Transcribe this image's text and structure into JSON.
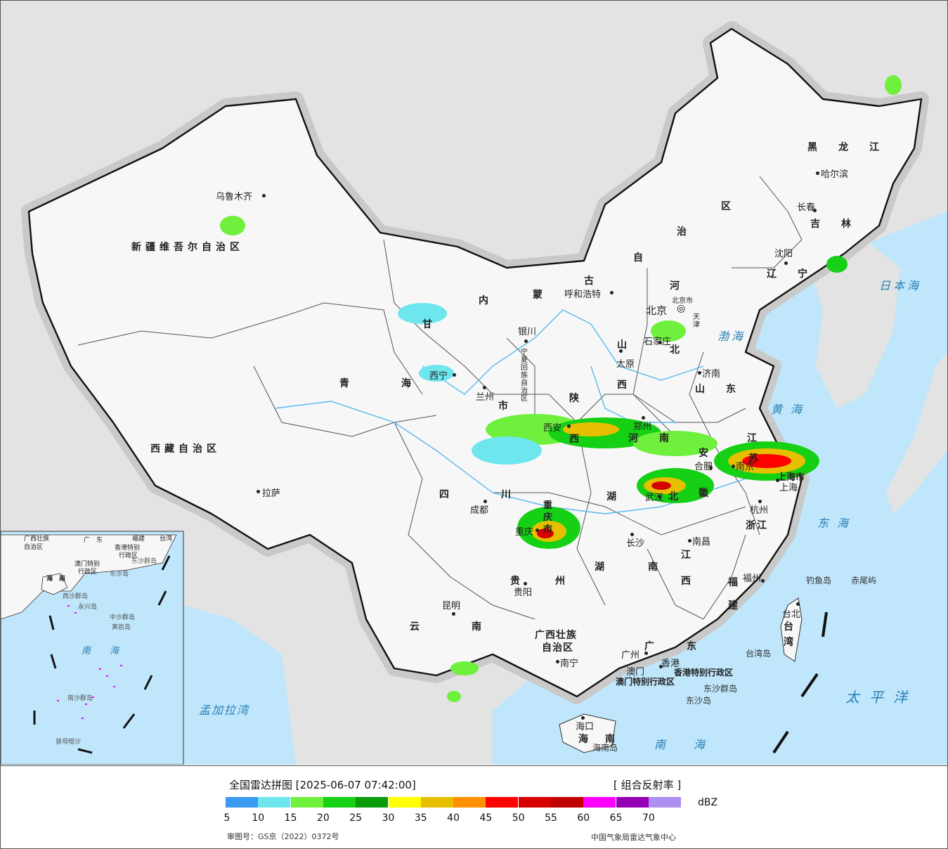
{
  "map": {
    "provinces": [
      {
        "id": "xinjiang",
        "text": "新疆维吾尔自治区"
      },
      {
        "id": "xizang",
        "text": "西藏自治区"
      },
      {
        "id": "qinghai",
        "text": "青　海"
      },
      {
        "id": "gansu",
        "text": "甘"
      },
      {
        "id": "neimenggu_1",
        "text": "内"
      },
      {
        "id": "neimenggu_2",
        "text": "蒙"
      },
      {
        "id": "neimenggu_3",
        "text": "古"
      },
      {
        "id": "neimenggu_4",
        "text": "自"
      },
      {
        "id": "neimenggu_5",
        "text": "治"
      },
      {
        "id": "neimenggu_6",
        "text": "区"
      },
      {
        "id": "heilongjiang",
        "text": "黑　龙　江"
      },
      {
        "id": "jilin",
        "text": "吉　林"
      },
      {
        "id": "liaoning",
        "text": "辽　宁"
      },
      {
        "id": "hebei_1",
        "text": "河"
      },
      {
        "id": "hebei_2",
        "text": "北"
      },
      {
        "id": "shandong",
        "text": "山　东"
      },
      {
        "id": "shanxi_1",
        "text": "山"
      },
      {
        "id": "shanxi_2",
        "text": "西"
      },
      {
        "id": "shaanxi_1",
        "text": "陕"
      },
      {
        "id": "shaanxi_2",
        "text": "西"
      },
      {
        "id": "henan",
        "text": "河　南"
      },
      {
        "id": "jiangsu_1",
        "text": "江"
      },
      {
        "id": "jiangsu_2",
        "text": "苏"
      },
      {
        "id": "anhui_1",
        "text": "安"
      },
      {
        "id": "anhui_2",
        "text": "徽"
      },
      {
        "id": "hubei",
        "text": "湖　北"
      },
      {
        "id": "sichuan",
        "text": "四　川"
      },
      {
        "id": "chongqing",
        "text": "重庆市"
      },
      {
        "id": "hunan",
        "text": "湖　南"
      },
      {
        "id": "jiangxi_1",
        "text": "江"
      },
      {
        "id": "jiangxi_2",
        "text": "西"
      },
      {
        "id": "zhejiang",
        "text": "浙江"
      },
      {
        "id": "fujian_1",
        "text": "福"
      },
      {
        "id": "fujian_2",
        "text": "建"
      },
      {
        "id": "guizhou",
        "text": "贵　州"
      },
      {
        "id": "yunnan",
        "text": "云　南"
      },
      {
        "id": "guangxi_1",
        "text": "广西壮族"
      },
      {
        "id": "guangxi_2",
        "text": "自治区"
      },
      {
        "id": "guangdong",
        "text": "广　东"
      },
      {
        "id": "hainan_1",
        "text": "海"
      },
      {
        "id": "hainan_2",
        "text": "南"
      },
      {
        "id": "taiwan_1",
        "text": "台"
      },
      {
        "id": "taiwan_2",
        "text": "湾"
      },
      {
        "id": "ningxia",
        "text": "宁夏回族自治区"
      },
      {
        "id": "shanghai",
        "text": "上海市"
      },
      {
        "id": "tianjin",
        "text": "天津"
      },
      {
        "id": "beijing_shi",
        "text": "北京市"
      },
      {
        "id": "hk_sar",
        "text": "香港特别行政区"
      },
      {
        "id": "macao_sar",
        "text": "澳门特别行政区"
      },
      {
        "id": "lanzhou_shi",
        "text": "市"
      }
    ],
    "cities": [
      {
        "id": "urumqi",
        "text": "乌鲁木齐"
      },
      {
        "id": "lhasa",
        "text": "拉萨"
      },
      {
        "id": "xining",
        "text": "西宁"
      },
      {
        "id": "lanzhou",
        "text": "兰州"
      },
      {
        "id": "yinchuan",
        "text": "银川"
      },
      {
        "id": "hohhot",
        "text": "呼和浩特"
      },
      {
        "id": "beijing",
        "text": "北京"
      },
      {
        "id": "shijiazhuang",
        "text": "石家庄"
      },
      {
        "id": "taiyuan",
        "text": "太原"
      },
      {
        "id": "jinan",
        "text": "济南"
      },
      {
        "id": "zhengzhou",
        "text": "郑州"
      },
      {
        "id": "xian",
        "text": "西安"
      },
      {
        "id": "hefei",
        "text": "合肥"
      },
      {
        "id": "nanjing",
        "text": "南京"
      },
      {
        "id": "shanghai_c",
        "text": "上海"
      },
      {
        "id": "hangzhou",
        "text": "杭州"
      },
      {
        "id": "wuhan",
        "text": "武汉"
      },
      {
        "id": "chengdu",
        "text": "成都"
      },
      {
        "id": "chongqing_c",
        "text": "重庆"
      },
      {
        "id": "changsha",
        "text": "长沙"
      },
      {
        "id": "nanchang",
        "text": "南昌"
      },
      {
        "id": "fuzhou",
        "text": "福州"
      },
      {
        "id": "taibei",
        "text": "台北"
      },
      {
        "id": "guiyang",
        "text": "贵阳"
      },
      {
        "id": "kunming",
        "text": "昆明"
      },
      {
        "id": "nanning",
        "text": "南宁"
      },
      {
        "id": "guangzhou",
        "text": "广州"
      },
      {
        "id": "xianggang",
        "text": "香港"
      },
      {
        "id": "aomen",
        "text": "澳门"
      },
      {
        "id": "haikou",
        "text": "海口"
      },
      {
        "id": "harbin",
        "text": "哈尔滨"
      },
      {
        "id": "changchun",
        "text": "长春"
      },
      {
        "id": "shenyang",
        "text": "沈阳"
      }
    ],
    "seas": [
      {
        "id": "riben",
        "text": "日本海"
      },
      {
        "id": "bohai",
        "text": "渤海"
      },
      {
        "id": "huanghai",
        "text": "黄海"
      },
      {
        "id": "donghai",
        "text": "东海"
      },
      {
        "id": "taipingyang",
        "text": "太平洋"
      },
      {
        "id": "nanhai",
        "text": "南海"
      },
      {
        "id": "mengjiala",
        "text": "孟加拉湾"
      }
    ],
    "islands": [
      {
        "id": "diaoyu",
        "text": "钓鱼岛"
      },
      {
        "id": "chiwei",
        "text": "赤尾屿"
      },
      {
        "id": "taiwan_dao",
        "text": "台湾岛"
      },
      {
        "id": "dongsha_qd",
        "text": "东沙群岛"
      },
      {
        "id": "dongsha_d",
        "text": "东沙岛"
      },
      {
        "id": "hainan_dao",
        "text": "海南岛"
      }
    ],
    "inset": {
      "labels": [
        {
          "id": "i_guangxi",
          "text": "广西壮族"
        },
        {
          "id": "i_zzq",
          "text": "自治区"
        },
        {
          "id": "i_guang",
          "text": "广　东"
        },
        {
          "id": "i_fujian",
          "text": "福建"
        },
        {
          "id": "i_taiwan",
          "text": "台湾"
        },
        {
          "id": "i_hk",
          "text": "香港特别"
        },
        {
          "id": "i_hk2",
          "text": "行政区"
        },
        {
          "id": "i_mo",
          "text": "澳门特别"
        },
        {
          "id": "i_mo2",
          "text": "行政区"
        },
        {
          "id": "i_dongsha",
          "text": "东沙群岛"
        },
        {
          "id": "i_dongsha2",
          "text": "东沙岛"
        },
        {
          "id": "i_hainan",
          "text": "海　南"
        },
        {
          "id": "i_xisha",
          "text": "西沙群岛"
        },
        {
          "id": "i_zhongsha",
          "text": "中沙群岛"
        },
        {
          "id": "i_huangyan",
          "text": "黄岩岛"
        },
        {
          "id": "i_yongxing",
          "text": "永兴岛"
        },
        {
          "id": "i_nansha",
          "text": "南沙群岛"
        },
        {
          "id": "i_zengmu",
          "text": "曾母暗沙"
        },
        {
          "id": "i_nan",
          "text": "南"
        },
        {
          "id": "i_hai",
          "text": "海"
        }
      ]
    }
  },
  "legend": {
    "title": "全国雷达拼图 [2025-06-07 07:42:00]",
    "product": "[ 组合反射率 ]",
    "unit": "dBZ",
    "ticks": [
      "5",
      "10",
      "15",
      "20",
      "25",
      "30",
      "35",
      "40",
      "45",
      "50",
      "55",
      "60",
      "65",
      "70"
    ],
    "colors": [
      "#3a9bf0",
      "#6ee6ee",
      "#6ef03c",
      "#16d016",
      "#0b9c0b",
      "#ffff00",
      "#e6c000",
      "#ff9000",
      "#ff0000",
      "#d60000",
      "#c00000",
      "#ff00ff",
      "#9600b4",
      "#ae8ef0"
    ],
    "approval": "审图号：GS京（2022）0372号",
    "agency": "中国气象局雷达气象中心"
  }
}
